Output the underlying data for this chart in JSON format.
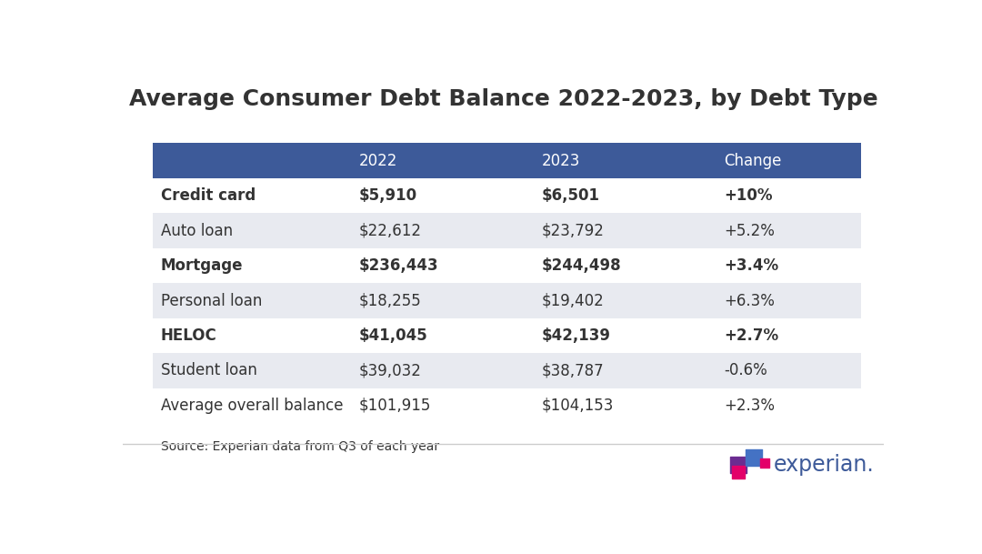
{
  "title": "Average Consumer Debt Balance 2022-2023, by Debt Type",
  "header": [
    "",
    "2022",
    "2023",
    "Change"
  ],
  "rows": [
    [
      "Credit card",
      "$5,910",
      "$6,501",
      "+10%"
    ],
    [
      "Auto loan",
      "$22,612",
      "$23,792",
      "+5.2%"
    ],
    [
      "Mortgage",
      "$236,443",
      "$244,498",
      "+3.4%"
    ],
    [
      "Personal loan",
      "$18,255",
      "$19,402",
      "+6.3%"
    ],
    [
      "HELOC",
      "$41,045",
      "$42,139",
      "+2.7%"
    ],
    [
      "Student loan",
      "$39,032",
      "$38,787",
      "-0.6%"
    ],
    [
      "Average overall balance",
      "$101,915",
      "$104,153",
      "+2.3%"
    ]
  ],
  "source_text": "Source: Experian data from Q3 of each year",
  "header_bg": "#3d5a99",
  "header_text_color": "#ffffff",
  "row_alt_bg": "#e8eaf0",
  "row_bg": "#ffffff",
  "text_color": "#333333",
  "bold_rows": [
    1,
    3,
    5
  ],
  "background_color": "#ffffff",
  "experian_purple": "#6b2c91",
  "experian_blue": "#4472c4",
  "experian_pink": "#e3006a",
  "experian_text_color": "#3d5a99"
}
